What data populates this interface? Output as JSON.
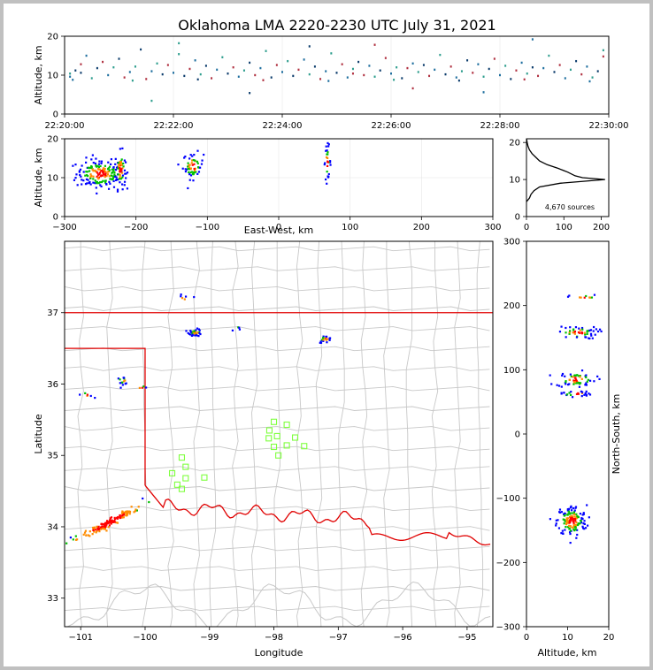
{
  "figure": {
    "title": "Oklahoma LMA 2220-2230 UTC July 31, 2021"
  },
  "colors": {
    "background": "#ffffff",
    "frame_border": "#c0c0c0",
    "county_lines": "#c8c8c8",
    "state_border": "#e00000",
    "stations": "#7fff3f",
    "histogram_line": "#000000",
    "density_scale": [
      "#0000ff",
      "#00c000",
      "#ff0000",
      "#ff8c00",
      "#000000"
    ],
    "time_height_scale": [
      "#1f6f9f",
      "#2e9e8e",
      "#0b3b6b",
      "#b03040"
    ]
  },
  "chart_data": [
    {
      "id": "time-height",
      "type": "scatter",
      "xlabel": "",
      "ylabel": "Altitude, km",
      "x_ticks": [
        "22:20:00",
        "22:22:00",
        "22:24:00",
        "22:26:00",
        "22:28:00",
        "22:30:00"
      ],
      "xlim_minutes": [
        0,
        10
      ],
      "ylim": [
        0,
        20
      ],
      "y_ticks": [
        0,
        10,
        20
      ],
      "notes": "x in minutes after 22:20:00 UTC; y altitude in km",
      "points": [
        [
          0.1,
          9.6
        ],
        [
          0.1,
          10.4
        ],
        [
          0.2,
          11.2
        ],
        [
          0.3,
          12.8
        ],
        [
          0.4,
          15.0
        ],
        [
          0.5,
          9.2
        ],
        [
          0.6,
          11.8
        ],
        [
          0.7,
          13.4
        ],
        [
          0.8,
          10.0
        ],
        [
          0.9,
          12.0
        ],
        [
          1.0,
          14.2
        ],
        [
          1.1,
          9.4
        ],
        [
          1.2,
          10.8
        ],
        [
          1.3,
          12.2
        ],
        [
          1.4,
          16.6
        ],
        [
          1.5,
          9.0
        ],
        [
          1.6,
          11.0
        ],
        [
          1.7,
          13.0
        ],
        [
          1.8,
          10.2
        ],
        [
          1.9,
          12.6
        ],
        [
          2.0,
          10.6
        ],
        [
          2.1,
          15.4
        ],
        [
          2.2,
          9.8
        ],
        [
          2.3,
          11.6
        ],
        [
          2.4,
          13.8
        ],
        [
          2.5,
          10.2
        ],
        [
          2.6,
          12.4
        ],
        [
          2.7,
          9.2
        ],
        [
          2.8,
          11.4
        ],
        [
          2.9,
          14.6
        ],
        [
          3.0,
          10.4
        ],
        [
          3.1,
          12.0
        ],
        [
          3.2,
          9.6
        ],
        [
          3.3,
          11.2
        ],
        [
          3.4,
          13.2
        ],
        [
          3.5,
          10.0
        ],
        [
          3.6,
          11.8
        ],
        [
          3.7,
          16.2
        ],
        [
          3.8,
          9.4
        ],
        [
          3.9,
          12.6
        ],
        [
          4.0,
          10.8
        ],
        [
          4.1,
          13.6
        ],
        [
          4.2,
          9.8
        ],
        [
          4.3,
          11.4
        ],
        [
          4.4,
          14.0
        ],
        [
          4.5,
          10.2
        ],
        [
          4.6,
          12.2
        ],
        [
          4.7,
          9.0
        ],
        [
          4.8,
          11.0
        ],
        [
          4.9,
          15.6
        ],
        [
          5.0,
          10.6
        ],
        [
          5.1,
          12.8
        ],
        [
          5.2,
          9.4
        ],
        [
          5.3,
          11.6
        ],
        [
          5.4,
          13.4
        ],
        [
          5.5,
          10.0
        ],
        [
          5.6,
          12.4
        ],
        [
          5.7,
          9.6
        ],
        [
          5.8,
          11.2
        ],
        [
          5.9,
          14.4
        ],
        [
          6.0,
          10.4
        ],
        [
          6.1,
          12.0
        ],
        [
          6.2,
          9.2
        ],
        [
          6.3,
          11.8
        ],
        [
          6.4,
          13.0
        ],
        [
          6.5,
          10.8
        ],
        [
          6.6,
          12.6
        ],
        [
          6.7,
          9.8
        ],
        [
          6.8,
          11.4
        ],
        [
          6.9,
          15.2
        ],
        [
          7.0,
          10.2
        ],
        [
          7.1,
          12.2
        ],
        [
          7.2,
          9.4
        ],
        [
          7.3,
          11.0
        ],
        [
          7.4,
          13.8
        ],
        [
          7.5,
          10.6
        ],
        [
          7.6,
          12.8
        ],
        [
          7.7,
          9.6
        ],
        [
          7.8,
          11.6
        ],
        [
          7.9,
          14.2
        ],
        [
          8.0,
          10.0
        ],
        [
          8.1,
          12.4
        ],
        [
          8.2,
          9.0
        ],
        [
          8.3,
          11.2
        ],
        [
          8.4,
          13.2
        ],
        [
          8.5,
          10.4
        ],
        [
          8.6,
          12.0
        ],
        [
          8.7,
          9.8
        ],
        [
          8.8,
          11.8
        ],
        [
          8.9,
          15.0
        ],
        [
          9.0,
          10.8
        ],
        [
          9.1,
          12.6
        ],
        [
          9.2,
          9.2
        ],
        [
          9.3,
          11.4
        ],
        [
          9.4,
          13.6
        ],
        [
          9.5,
          10.2
        ],
        [
          9.6,
          12.2
        ],
        [
          9.7,
          9.4
        ],
        [
          9.8,
          11.0
        ],
        [
          9.9,
          14.8
        ],
        [
          0.15,
          8.8
        ],
        [
          1.25,
          8.6
        ],
        [
          2.45,
          8.9
        ],
        [
          3.65,
          8.7
        ],
        [
          4.85,
          8.5
        ],
        [
          6.05,
          8.8
        ],
        [
          7.25,
          8.6
        ],
        [
          8.45,
          8.9
        ],
        [
          9.65,
          8.4
        ],
        [
          1.6,
          3.4
        ],
        [
          3.4,
          5.4
        ],
        [
          6.4,
          6.6
        ],
        [
          7.7,
          5.6
        ],
        [
          2.1,
          18.2
        ],
        [
          4.5,
          17.4
        ],
        [
          5.7,
          17.8
        ],
        [
          8.6,
          19.2
        ],
        [
          9.9,
          16.4
        ],
        [
          0.3,
          10.6
        ],
        [
          5.3,
          10.4
        ]
      ]
    },
    {
      "id": "east-west-altitude",
      "type": "scatter",
      "xlabel": "East-West, km",
      "ylabel": "Altitude, km",
      "xlim": [
        -300,
        300
      ],
      "x_ticks": [
        -300,
        -200,
        -100,
        0,
        100,
        200,
        300
      ],
      "ylim": [
        0,
        20
      ],
      "y_ticks": [
        0,
        10,
        20
      ],
      "clusters": [
        {
          "x_center": -250,
          "x_spread": 28,
          "y_center": 11,
          "y_spread": 3.2,
          "count": 170
        },
        {
          "x_center": -222,
          "x_spread": 6,
          "y_center": 12,
          "y_spread": 4,
          "count": 60
        },
        {
          "x_center": -120,
          "x_spread": 12,
          "y_center": 13,
          "y_spread": 2.8,
          "count": 55
        },
        {
          "x_center": 68,
          "x_spread": 4,
          "y_center": 14,
          "y_spread": 3.5,
          "count": 28
        }
      ]
    },
    {
      "id": "altitude-histogram",
      "type": "line",
      "xlabel": "",
      "ylabel": "",
      "xlim": [
        0,
        220
      ],
      "x_ticks": [
        0,
        100,
        200
      ],
      "ylim": [
        0,
        21
      ],
      "y_ticks": [
        0,
        10,
        20
      ],
      "annotation": "4,670 sources",
      "profile_alt_km": [
        4,
        5,
        6,
        7,
        8,
        9,
        10,
        10.5,
        11,
        12,
        13,
        14,
        15,
        16,
        17,
        18,
        19,
        20,
        21
      ],
      "profile_count": [
        0,
        8,
        12,
        20,
        35,
        90,
        210,
        150,
        130,
        110,
        85,
        55,
        35,
        25,
        15,
        8,
        4,
        2,
        0
      ]
    },
    {
      "id": "plan-view",
      "type": "scatter",
      "xlabel": "Longitude",
      "ylabel": "Latitude",
      "xlim": [
        -101.25,
        -94.6
      ],
      "x_ticks": [
        -101,
        -100,
        -99,
        -98,
        -97,
        -96,
        -95
      ],
      "ylim": [
        32.6,
        38.0
      ],
      "y_ticks": [
        33,
        34,
        35,
        36,
        37
      ],
      "clusters": [
        {
          "lon": -100.55,
          "lat": 34.07,
          "count": 140,
          "shape": "diagonal"
        },
        {
          "lon": -99.22,
          "lat": 36.72,
          "count": 40,
          "shape": "blob"
        },
        {
          "lon": -97.2,
          "lat": 36.63,
          "count": 20,
          "shape": "blob"
        },
        {
          "lon": -100.35,
          "lat": 36.05,
          "count": 14,
          "shape": "blob"
        },
        {
          "lon": -100.9,
          "lat": 35.85,
          "count": 6,
          "shape": "blob"
        },
        {
          "lon": -99.4,
          "lat": 37.2,
          "count": 6,
          "shape": "blob"
        },
        {
          "lon": -100.05,
          "lat": 35.94,
          "count": 4,
          "shape": "blob"
        },
        {
          "lon": -98.6,
          "lat": 36.78,
          "count": 4,
          "shape": "blob"
        }
      ],
      "stations": [
        [
          -98.0,
          35.47
        ],
        [
          -97.8,
          35.43
        ],
        [
          -98.07,
          35.35
        ],
        [
          -97.95,
          35.27
        ],
        [
          -98.08,
          35.24
        ],
        [
          -97.67,
          35.25
        ],
        [
          -98.0,
          35.12
        ],
        [
          -97.8,
          35.14
        ],
        [
          -97.53,
          35.13
        ],
        [
          -97.93,
          35.0
        ],
        [
          -99.43,
          34.97
        ],
        [
          -99.37,
          34.84
        ],
        [
          -99.58,
          34.75
        ],
        [
          -99.37,
          34.68
        ],
        [
          -99.08,
          34.69
        ],
        [
          -99.5,
          34.59
        ],
        [
          -99.43,
          34.53
        ]
      ]
    },
    {
      "id": "altitude-north-south",
      "type": "scatter",
      "xlabel": "Altitude, km",
      "ylabel": "North-South, km",
      "xlim": [
        0,
        20
      ],
      "x_ticks": [
        0,
        10,
        20
      ],
      "ylim": [
        -300,
        300
      ],
      "y_ticks": [
        -300,
        -200,
        -100,
        0,
        100,
        200,
        300
      ],
      "clusters": [
        {
          "x_center": 11,
          "x_spread": 3,
          "y_center": -135,
          "y_spread": 20,
          "count": 150
        },
        {
          "x_center": 12,
          "x_spread": 4,
          "y_center": 85,
          "y_spread": 10,
          "count": 60
        },
        {
          "x_center": 12.5,
          "x_spread": 4,
          "y_center": 158,
          "y_spread": 8,
          "count": 50
        },
        {
          "x_center": 12,
          "x_spread": 3,
          "y_center": 63,
          "y_spread": 4,
          "count": 25
        },
        {
          "x_center": 14,
          "x_spread": 3,
          "y_center": 213,
          "y_spread": 3,
          "count": 10
        }
      ]
    }
  ]
}
